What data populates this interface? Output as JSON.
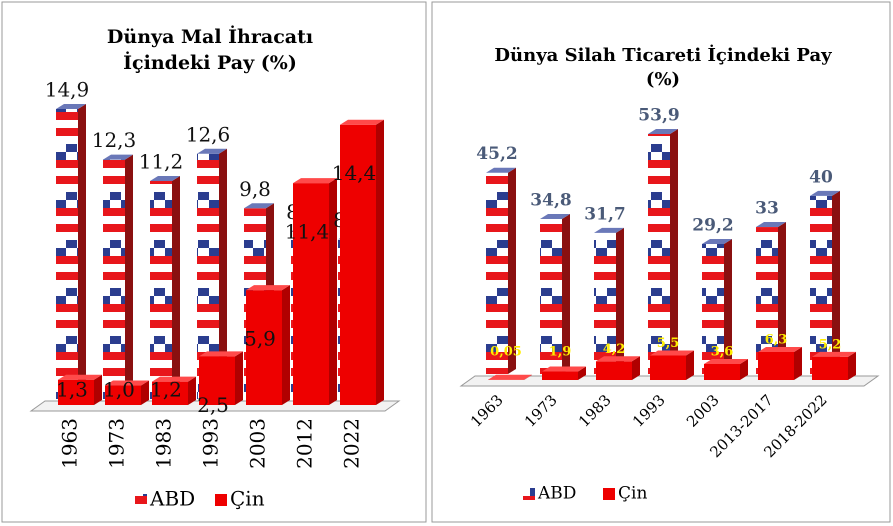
{
  "chart_data": [
    {
      "type": "bar",
      "title": [
        "Dünya Mal İhracatı",
        "İçindeki Pay (%)"
      ],
      "categories": [
        "1963",
        "1973",
        "1983",
        "1993",
        "2003",
        "2012",
        "2022"
      ],
      "series": [
        {
          "name": "ABD",
          "color": "#2b3d8f",
          "values": [
            14.9,
            12.3,
            11.2,
            12.6,
            9.8,
            8.6,
            8.2
          ],
          "value_labels": [
            "14,9",
            "12,3",
            "11,2",
            "12,6",
            "9,8",
            "8,6",
            "8,2"
          ]
        },
        {
          "name": "Çin",
          "color": "#ee0000",
          "values": [
            1.3,
            1.0,
            1.2,
            2.5,
            5.9,
            11.4,
            14.4
          ],
          "value_labels": [
            "1,3",
            "1,0",
            "1,2",
            "2,5",
            "5,9",
            "11,4",
            "14,4"
          ]
        }
      ]
    },
    {
      "type": "bar",
      "title": [
        "Dünya Silah Ticareti İçindeki Pay",
        "(%)"
      ],
      "categories": [
        "1963",
        "1973",
        "1983",
        "1993",
        "2003",
        "2013-2017",
        "2018-2022"
      ],
      "series": [
        {
          "name": "ABD",
          "color": "#2b3d8f",
          "values": [
            45.2,
            34.8,
            31.7,
            53.9,
            29.2,
            33,
            40
          ],
          "value_labels": [
            "45,2",
            "34,8",
            "31,7",
            "53,9",
            "29,2",
            "33",
            "40"
          ]
        },
        {
          "name": "Çin",
          "color": "#ee0000",
          "values": [
            0.05,
            1.9,
            4.2,
            5.5,
            3.6,
            6.3,
            5.2
          ],
          "value_labels": [
            "0,05",
            "1,9",
            "4,2",
            "5,5",
            "3,6",
            "6,3",
            "5,2"
          ]
        }
      ]
    }
  ]
}
